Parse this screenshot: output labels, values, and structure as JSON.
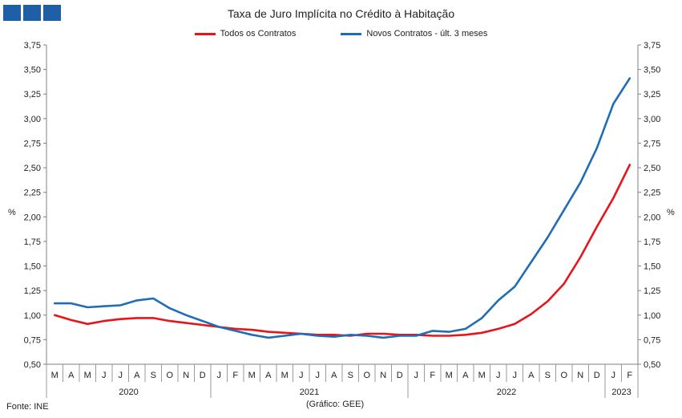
{
  "title": "Taxa de Juro Implícita  no Crédito à Habitação",
  "unit_left": "%",
  "unit_right": "%",
  "source": "Fonte: INE",
  "credit": "(Gráfico: GEE)",
  "logo_icon": "gee-logo-squares",
  "chart_data": {
    "type": "line",
    "title": "Taxa de Juro Implícita  no Crédito à Habitação",
    "ylabel": "%",
    "ylim": [
      0.5,
      3.75
    ],
    "yticks": [
      "0,50",
      "0,75",
      "1,00",
      "1,25",
      "1,50",
      "1,75",
      "2,00",
      "2,25",
      "2,50",
      "2,75",
      "3,00",
      "3,25",
      "3,50",
      "3,75"
    ],
    "yticks_values": [
      0.5,
      0.75,
      1.0,
      1.25,
      1.5,
      1.75,
      2.0,
      2.25,
      2.5,
      2.75,
      3.0,
      3.25,
      3.5,
      3.75
    ],
    "categories": [
      "M",
      "A",
      "M",
      "J",
      "J",
      "A",
      "S",
      "O",
      "N",
      "D",
      "J",
      "F",
      "M",
      "A",
      "M",
      "J",
      "J",
      "A",
      "S",
      "O",
      "N",
      "D",
      "J",
      "F",
      "M",
      "A",
      "M",
      "J",
      "J",
      "A",
      "S",
      "O",
      "N",
      "D",
      "J",
      "F"
    ],
    "years": [
      {
        "label": "2020",
        "count": 10
      },
      {
        "label": "2021",
        "count": 12
      },
      {
        "label": "2022",
        "count": 12
      },
      {
        "label": "2023",
        "count": 2
      }
    ],
    "grid": false,
    "legend_position": "top-center",
    "series": [
      {
        "name": "Todos os Contratos",
        "color": "#e8141c",
        "values": [
          1.0,
          0.95,
          0.91,
          0.94,
          0.96,
          0.97,
          0.97,
          0.94,
          0.92,
          0.9,
          0.88,
          0.86,
          0.85,
          0.83,
          0.82,
          0.81,
          0.8,
          0.8,
          0.79,
          0.81,
          0.81,
          0.8,
          0.8,
          0.79,
          0.79,
          0.8,
          0.82,
          0.86,
          0.91,
          1.01,
          1.14,
          1.32,
          1.59,
          1.9,
          2.19,
          2.53
        ]
      },
      {
        "name": "Novos Contratos - últ. 3 meses",
        "color": "#1f6db5",
        "values": [
          1.12,
          1.12,
          1.08,
          1.09,
          1.1,
          1.15,
          1.17,
          1.07,
          1.0,
          0.94,
          0.88,
          0.84,
          0.8,
          0.77,
          0.79,
          0.81,
          0.79,
          0.78,
          0.8,
          0.79,
          0.77,
          0.79,
          0.79,
          0.84,
          0.83,
          0.86,
          0.97,
          1.15,
          1.29,
          1.54,
          1.79,
          2.07,
          2.35,
          2.7,
          3.15,
          3.41
        ]
      }
    ]
  }
}
